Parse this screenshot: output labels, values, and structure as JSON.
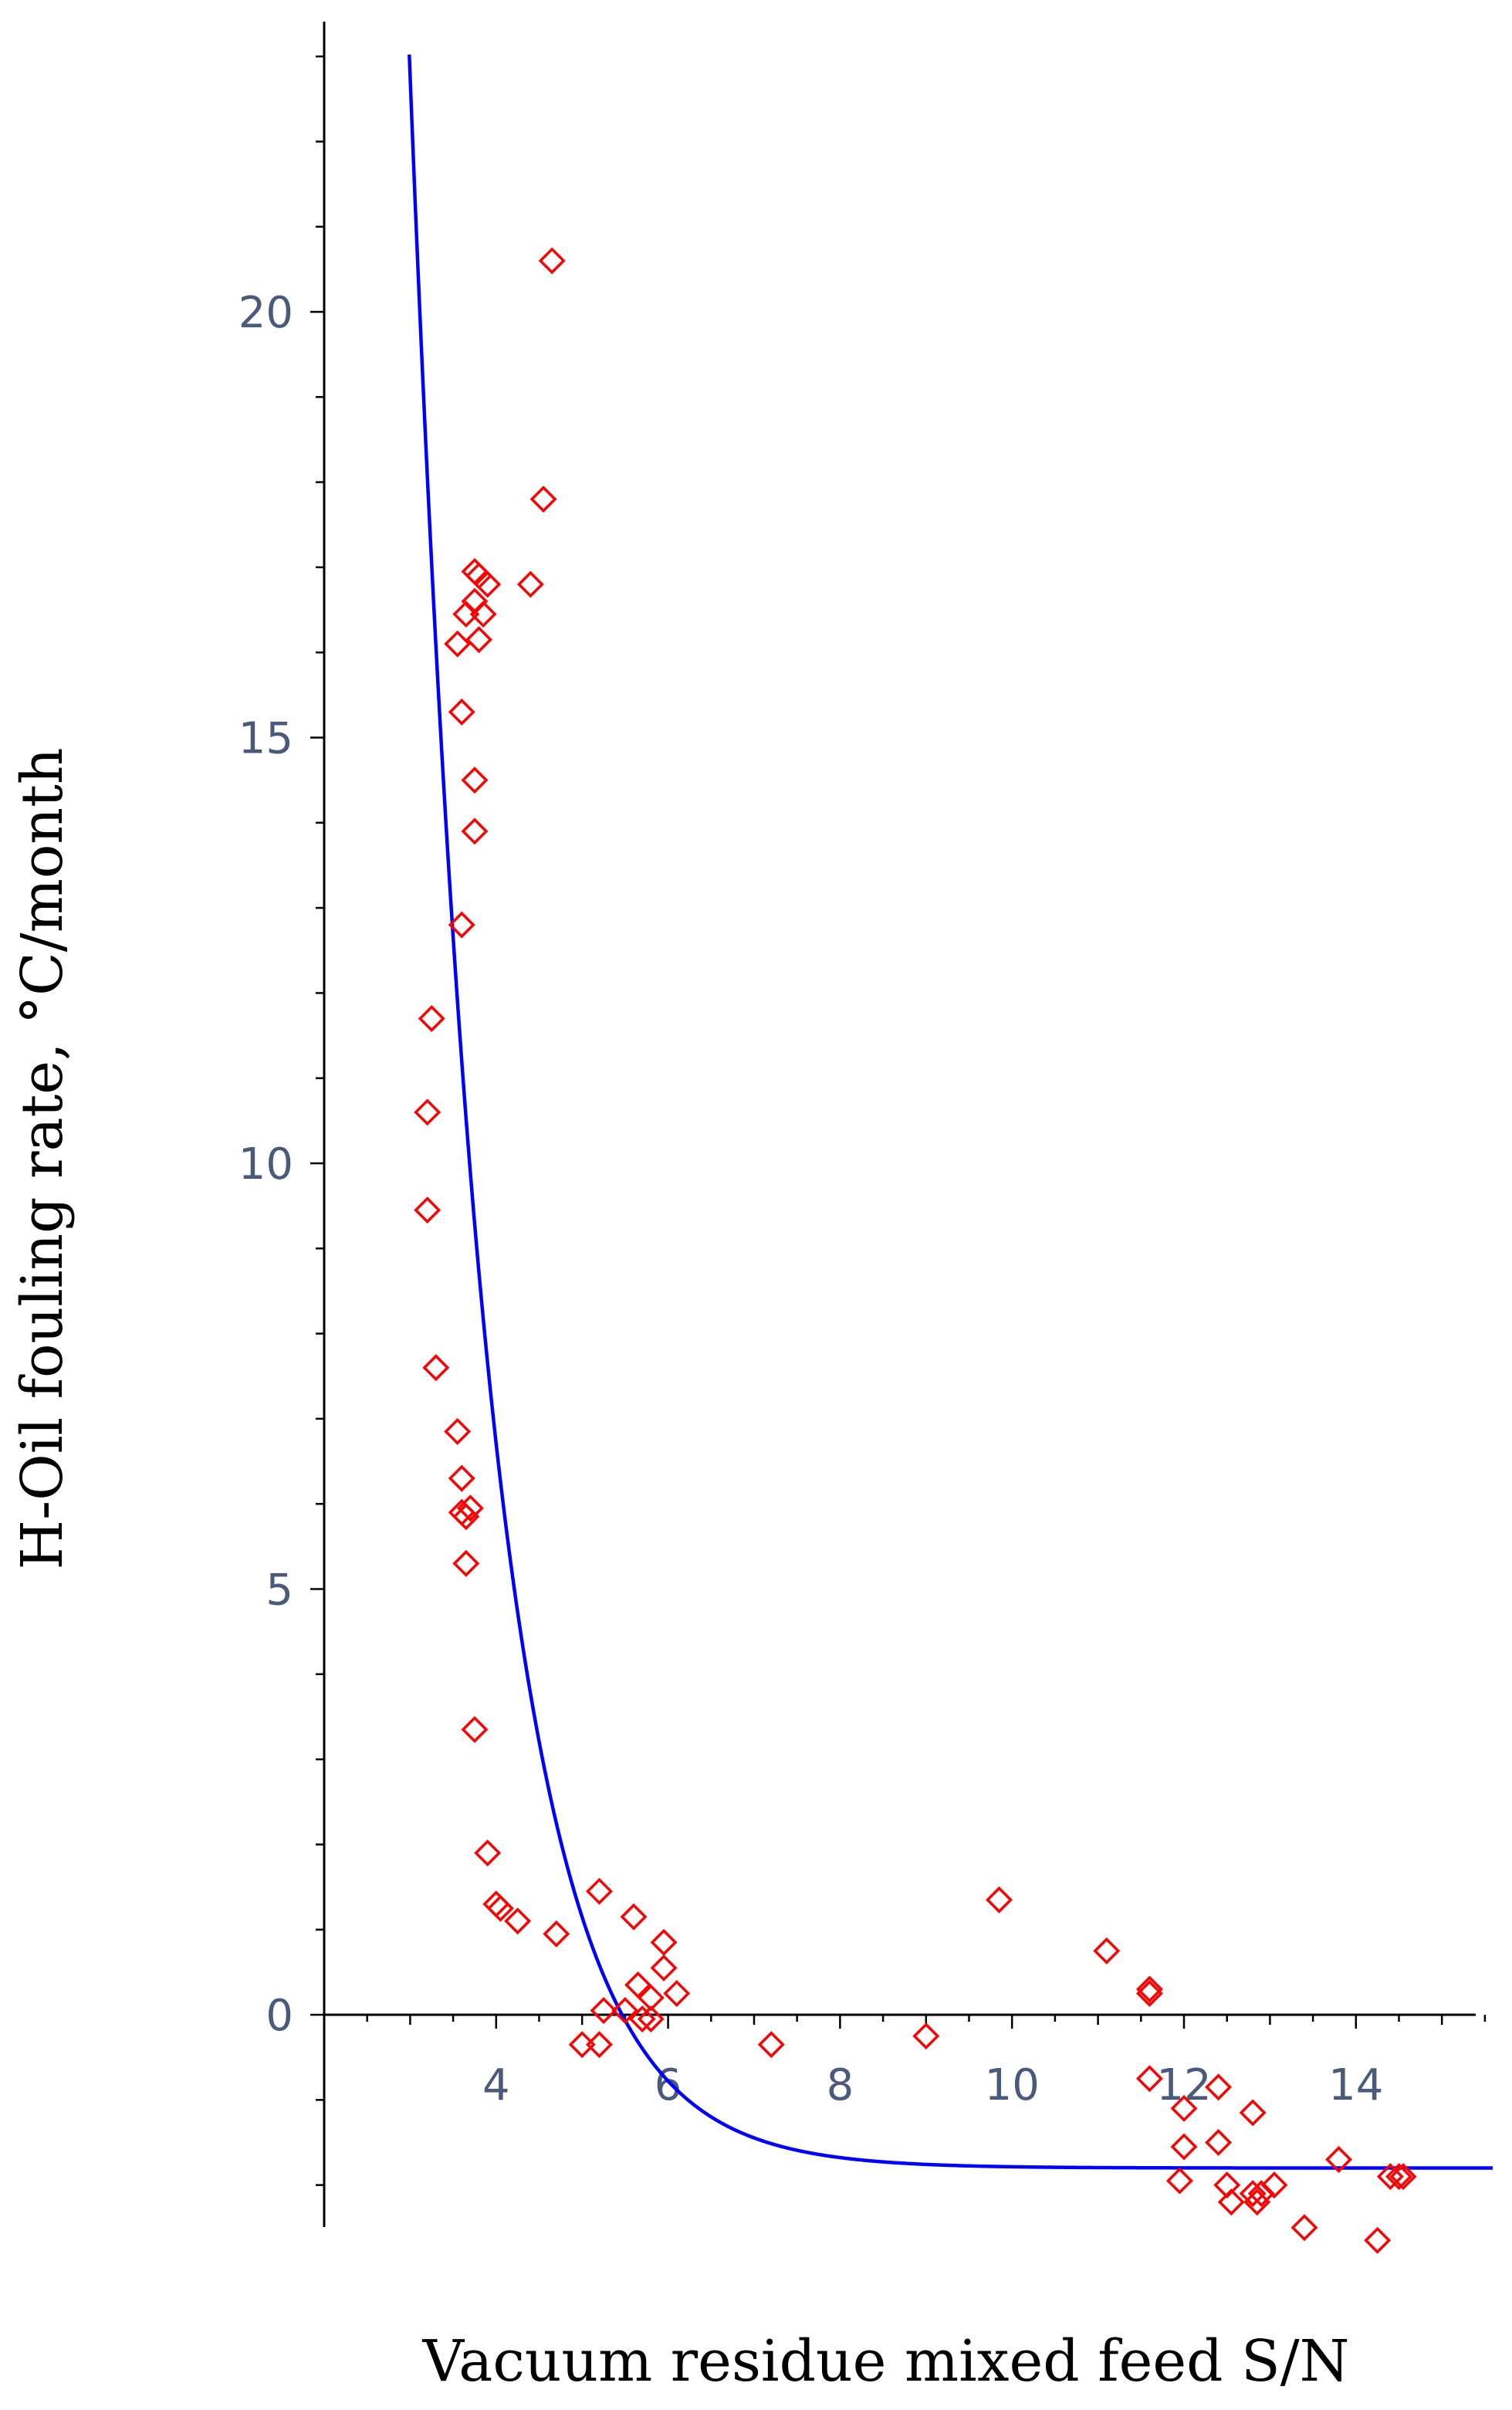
{
  "chart_data": {
    "type": "scatter",
    "xlabel": "Vacuum residue mixed feed S/N",
    "ylabel": "H-Oil fouling rate, °C/month",
    "xlim": [
      1.8,
      15.6
    ],
    "ylim": [
      -2.7,
      23.1
    ],
    "x_ticks": [
      4,
      6,
      8,
      10,
      12,
      14
    ],
    "y_ticks": [
      0,
      5,
      10,
      15,
      20
    ],
    "x_tick_labels": [
      "4",
      "6",
      "8",
      "10",
      "12",
      "14"
    ],
    "y_tick_labels": [
      "0",
      "5",
      "10",
      "15",
      "20"
    ],
    "grid": false,
    "colors": {
      "points": "#ff0000",
      "fit": "#0000ff",
      "axis": "#000000",
      "tick_label": "#4a5a7a"
    },
    "series": [
      {
        "type": "scatter",
        "marker": "diamond",
        "points": [
          [
            4.65,
            20.6
          ],
          [
            4.55,
            17.8
          ],
          [
            4.4,
            16.8
          ],
          [
            3.75,
            16.95
          ],
          [
            3.8,
            16.9
          ],
          [
            3.9,
            16.8
          ],
          [
            3.75,
            16.6
          ],
          [
            3.65,
            16.45
          ],
          [
            3.85,
            16.45
          ],
          [
            3.55,
            16.1
          ],
          [
            3.8,
            16.15
          ],
          [
            3.6,
            15.3
          ],
          [
            3.75,
            14.5
          ],
          [
            3.75,
            13.9
          ],
          [
            3.6,
            12.8
          ],
          [
            3.25,
            11.7
          ],
          [
            3.2,
            10.6
          ],
          [
            3.2,
            9.45
          ],
          [
            3.3,
            7.6
          ],
          [
            3.55,
            6.85
          ],
          [
            3.6,
            6.3
          ],
          [
            3.6,
            5.9
          ],
          [
            3.7,
            5.95
          ],
          [
            3.65,
            5.85
          ],
          [
            3.65,
            5.3
          ],
          [
            3.75,
            3.35
          ],
          [
            3.9,
            1.9
          ],
          [
            4.0,
            1.3
          ],
          [
            4.05,
            1.25
          ],
          [
            4.25,
            1.1
          ],
          [
            4.7,
            0.95
          ],
          [
            5.2,
            1.45
          ],
          [
            5.6,
            1.15
          ],
          [
            5.95,
            0.85
          ],
          [
            5.95,
            0.55
          ],
          [
            5.65,
            0.35
          ],
          [
            5.8,
            0.2
          ],
          [
            6.1,
            0.25
          ],
          [
            5.5,
            0.05
          ],
          [
            5.25,
            0.05
          ],
          [
            5.7,
            -0.05
          ],
          [
            5.8,
            -0.05
          ],
          [
            5.0,
            -0.35
          ],
          [
            5.2,
            -0.35
          ],
          [
            7.2,
            -0.35
          ],
          [
            9.0,
            -0.25
          ],
          [
            9.85,
            1.35
          ],
          [
            11.1,
            0.75
          ],
          [
            11.6,
            0.3
          ],
          [
            11.6,
            0.25
          ],
          [
            11.6,
            -0.75
          ],
          [
            12.4,
            -0.85
          ],
          [
            12.0,
            -1.1
          ],
          [
            12.8,
            -1.15
          ],
          [
            12.0,
            -1.55
          ],
          [
            12.4,
            -1.5
          ],
          [
            13.8,
            -1.7
          ],
          [
            11.95,
            -1.95
          ],
          [
            12.5,
            -2.0
          ],
          [
            12.55,
            -2.2
          ],
          [
            12.8,
            -2.1
          ],
          [
            13.05,
            -2.0
          ],
          [
            12.9,
            -2.1
          ],
          [
            12.85,
            -2.2
          ],
          [
            14.4,
            -1.9
          ],
          [
            14.5,
            -1.9
          ],
          [
            14.55,
            -1.9
          ],
          [
            13.4,
            -2.5
          ],
          [
            14.25,
            -2.65
          ]
        ]
      },
      {
        "type": "line",
        "model": "y = 24.56 * exp(-1.06 * (x - 3)) - 1.8",
        "coefficients": {
          "a": 24.56,
          "b": 1.06,
          "x0": 3,
          "c": -1.8
        },
        "x_range": [
          2.25,
          15.6
        ]
      }
    ]
  }
}
